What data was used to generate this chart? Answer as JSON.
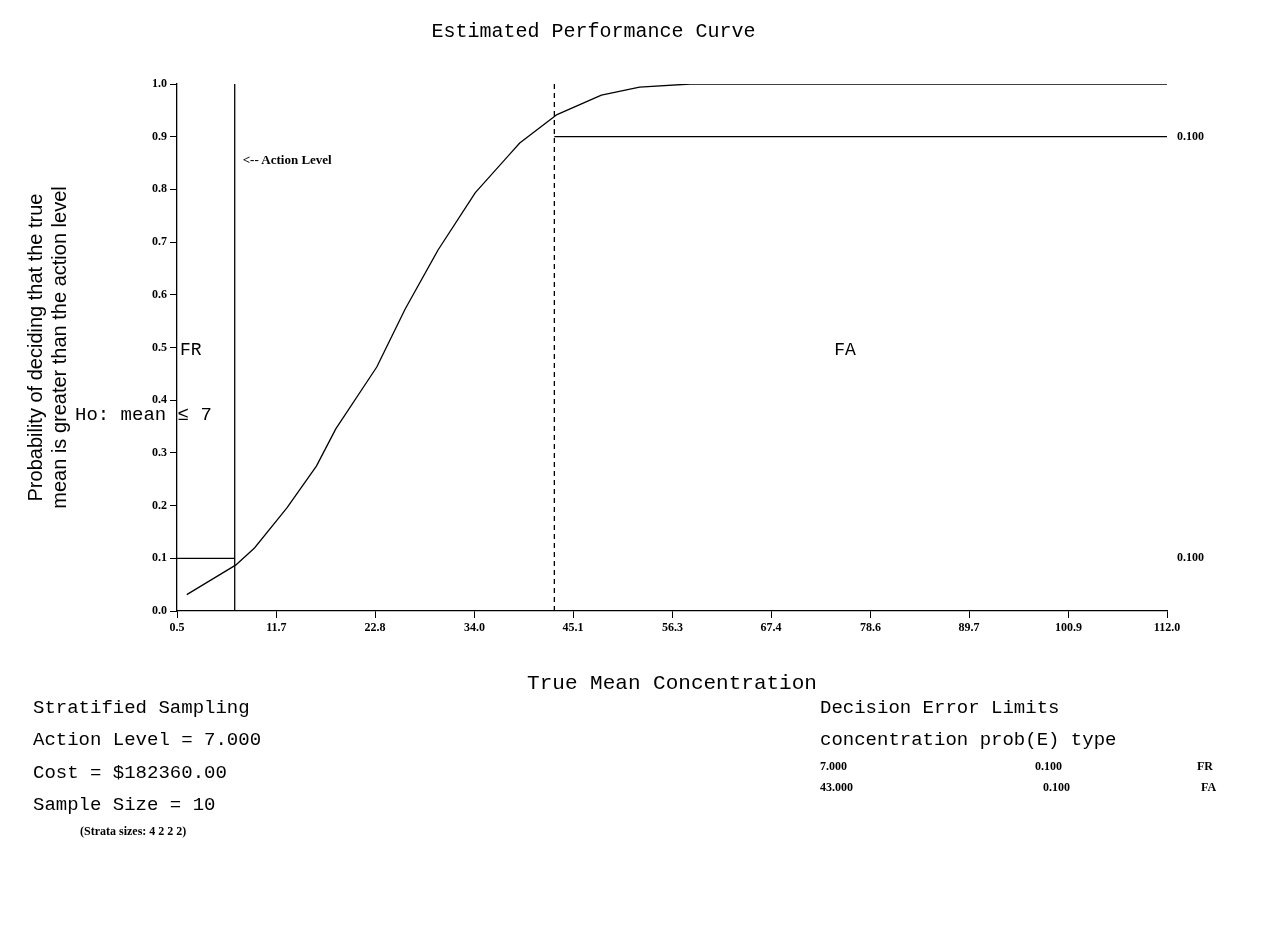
{
  "chart_data": {
    "type": "line",
    "title": "Estimated Performance Curve",
    "xlabel": "True Mean Concentration",
    "ylabel": "Probability of deciding that the true\nmean is greater than the action level",
    "series": [
      {
        "color": "#000000",
        "x": [
          1.6,
          7.1,
          9.2,
          12.9,
          16.2,
          18.4,
          23.0,
          26.2,
          29.9,
          34.1,
          39.1,
          43.3,
          48.3,
          52.6,
          58.3,
          112
        ],
        "values": [
          0.031,
          0.087,
          0.119,
          0.196,
          0.275,
          0.346,
          0.463,
          0.573,
          0.685,
          0.794,
          0.888,
          0.942,
          0.979,
          0.994,
          1.0,
          1.0
        ]
      },
      {
        "color": "#000000",
        "x": [
          0.5,
          7
        ],
        "values": [
          0.1,
          0.1
        ]
      },
      {
        "color": "#000000",
        "x": [
          43,
          112
        ],
        "values": [
          0.9,
          0.9
        ]
      }
    ],
    "xlim": [
      0.5,
      112
    ],
    "xticks": [
      {
        "value": 0.5,
        "label": "0.5"
      },
      {
        "value": 11.7,
        "label": "11.7"
      },
      {
        "value": 22.8,
        "label": "22.8"
      },
      {
        "value": 34,
        "label": "34.0"
      },
      {
        "value": 45.1,
        "label": "45.1"
      },
      {
        "value": 56.3,
        "label": "56.3"
      },
      {
        "value": 67.4,
        "label": "67.4"
      },
      {
        "value": 78.6,
        "label": "78.6"
      },
      {
        "value": 89.7,
        "label": "89.7"
      },
      {
        "value": 100.9,
        "label": "100.9"
      },
      {
        "value": 112,
        "label": "112.0"
      }
    ],
    "ylim": [
      0,
      1
    ],
    "yticks": [
      {
        "value": 0,
        "label": "0.0"
      },
      {
        "value": 0.1,
        "label": "0.1"
      },
      {
        "value": 0.2,
        "label": "0.2"
      },
      {
        "value": 0.3,
        "label": "0.3"
      },
      {
        "value": 0.4,
        "label": "0.4"
      },
      {
        "value": 0.5,
        "label": "0.5"
      },
      {
        "value": 0.6,
        "label": "0.6"
      },
      {
        "value": 0.7,
        "label": "0.7"
      },
      {
        "value": 0.8,
        "label": "0.8"
      },
      {
        "value": 0.9,
        "label": "0.9"
      },
      {
        "value": 1,
        "label": "1.0"
      }
    ],
    "ref_lines": [
      {
        "axis": "x",
        "value": 7,
        "label": "<-- Action Level",
        "line_style": "solid"
      },
      {
        "axis": "x",
        "value": 43,
        "line_style": "dashed"
      }
    ],
    "marker": "none",
    "line_style": "solid",
    "legend": false,
    "annotations": [
      "FR",
      "FA",
      {
        "text": "0.100",
        "x": 112,
        "y": 0.9
      },
      "0.100",
      "Ho: mean ≤ 7",
      "Stratified Sampling",
      "Action Level = 7.000",
      "Cost = $182360.00",
      "Sample Size = 10",
      "(Strata sizes: 4 2 2 2)",
      "Decision Error Limits",
      "concentration prob(E) type",
      "7.000",
      "0.100",
      "FR",
      "43.000",
      "0.100",
      "FA"
    ]
  }
}
